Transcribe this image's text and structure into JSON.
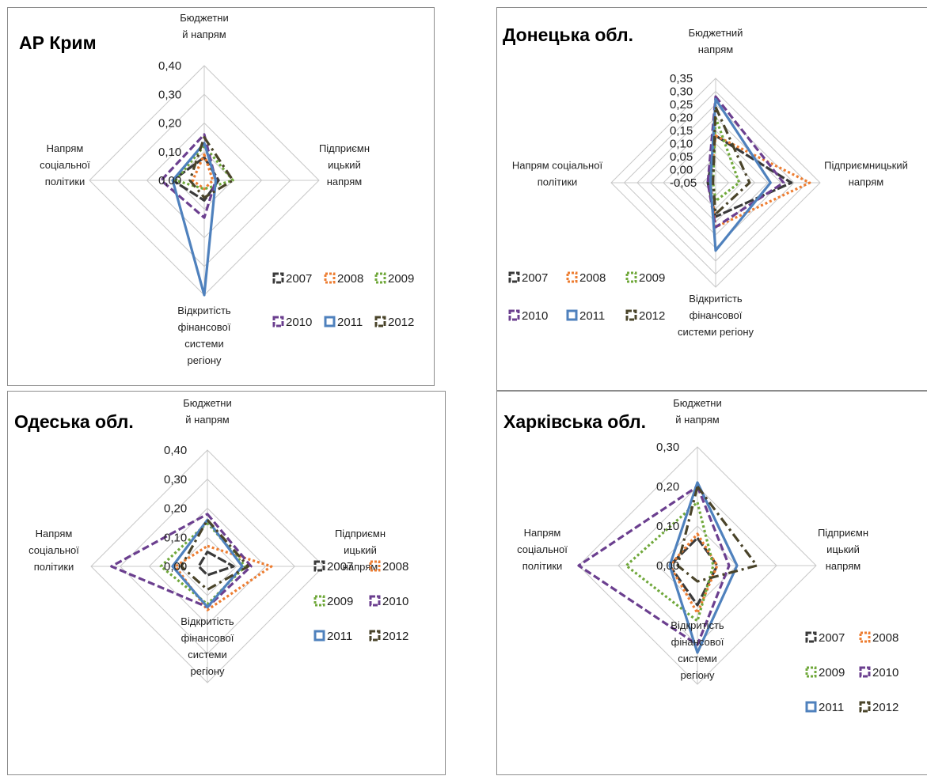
{
  "series_colors": [
    "#3a3a3a",
    "#ed7d31",
    "#70a83b",
    "#6b3f8f",
    "#4f81bd",
    "#4a442a"
  ],
  "charts": [
    {
      "title": "АР Крим",
      "axes": [
        [
          "Бюджетни",
          "й напрям"
        ],
        [
          "Підприємн",
          "ицький",
          "напрям"
        ],
        [
          "Відкритість",
          "фінансової",
          "системи",
          "регіону"
        ],
        [
          "Напрям",
          "соціальної",
          "політики"
        ]
      ],
      "ticks": [
        "0,00",
        "0,10",
        "0,20",
        "0,30",
        "0,40"
      ],
      "legend_rows": [
        [
          "2007",
          "2008",
          "2009"
        ],
        [
          "2010",
          "2011",
          "2012"
        ]
      ]
    },
    {
      "title": "Донецька обл.",
      "axes": [
        [
          "Бюджетний",
          "напрям"
        ],
        [
          "Підприємницький",
          "напрям"
        ],
        [
          "Відкритість",
          "фінансової",
          "системи регіону"
        ],
        [
          "Напрям соціальної",
          "політики"
        ]
      ],
      "ticks": [
        "-0,05",
        "0,00",
        "0,05",
        "0,10",
        "0,15",
        "0,20",
        "0,25",
        "0,30",
        "0,35"
      ],
      "legend_rows": [
        [
          "2007",
          "2008",
          "2009"
        ],
        [
          "2010",
          "2011",
          "2012"
        ]
      ]
    },
    {
      "title": "Одеська обл.",
      "axes": [
        [
          "Бюджетни",
          "й напрям"
        ],
        [
          "Підприємн",
          "ицький",
          "напрям"
        ],
        [
          "Відкритість",
          "фінансової",
          "системи",
          "регіону"
        ],
        [
          "Напрям",
          "соціальної",
          "політики"
        ]
      ],
      "ticks": [
        "0,00",
        "0,10",
        "0,20",
        "0,30",
        "0,40"
      ],
      "legend_rows": [
        [
          "2007",
          "2008"
        ],
        [
          "2009",
          "2010"
        ],
        [
          "2011",
          "2012"
        ]
      ]
    },
    {
      "title": "Харківська обл.",
      "axes": [
        [
          "Бюджетни",
          "й напрям"
        ],
        [
          "Підприємн",
          "ицький",
          "напрям"
        ],
        [
          "Відкритість",
          "фінансової",
          "системи",
          "регіону"
        ],
        [
          "Напрям",
          "соціальної",
          "політики"
        ]
      ],
      "ticks": [
        "0,00",
        "0,10",
        "0,20",
        "0,30"
      ],
      "legend_rows": [
        [
          "2007",
          "2008"
        ],
        [
          "2009",
          "2010"
        ],
        [
          "2011",
          "2012"
        ]
      ]
    }
  ],
  "chart_data": [
    {
      "type": "radar",
      "title": "АР Крим",
      "categories": [
        "Бюджетний напрям",
        "Підприємницький напрям",
        "Відкритість фінансової системи регіону",
        "Напрям соціальної політики"
      ],
      "rlim": [
        0,
        0.4
      ],
      "series": [
        {
          "name": "2007",
          "values": [
            0.08,
            0.05,
            0.07,
            0.11
          ]
        },
        {
          "name": "2008",
          "values": [
            0.09,
            0.03,
            0.03,
            0.04
          ]
        },
        {
          "name": "2009",
          "values": [
            0.12,
            0.1,
            0.03,
            0.1
          ]
        },
        {
          "name": "2010",
          "values": [
            0.16,
            0.04,
            0.13,
            0.15
          ]
        },
        {
          "name": "2011",
          "values": [
            0.13,
            0.04,
            0.4,
            0.11
          ]
        },
        {
          "name": "2012",
          "values": [
            0.15,
            0.1,
            0.06,
            0.05
          ]
        }
      ]
    },
    {
      "type": "radar",
      "title": "Донецька обл.",
      "categories": [
        "Бюджетний напрям",
        "Підприємницький напрям",
        "Відкритість фінансової системи регіону",
        "Напрям соціальної політики"
      ],
      "rlim": [
        -0.05,
        0.35
      ],
      "series": [
        {
          "name": "2007",
          "values": [
            0.13,
            0.24,
            0.08,
            -0.02
          ]
        },
        {
          "name": "2008",
          "values": [
            0.13,
            0.31,
            0.12,
            -0.03
          ]
        },
        {
          "name": "2009",
          "values": [
            0.2,
            0.04,
            0.02,
            -0.04
          ]
        },
        {
          "name": "2010",
          "values": [
            0.28,
            0.21,
            0.12,
            -0.02
          ]
        },
        {
          "name": "2011",
          "values": [
            0.27,
            0.16,
            0.21,
            -0.03
          ]
        },
        {
          "name": "2012",
          "values": [
            0.24,
            0.08,
            0.07,
            -0.04
          ]
        }
      ]
    },
    {
      "type": "radar",
      "title": "Одеська обл.",
      "categories": [
        "Бюджетний напрям",
        "Підприємницький напрям",
        "Відкритість фінансової системи регіону",
        "Напрям соціальної політики"
      ],
      "rlim": [
        0,
        0.4
      ],
      "series": [
        {
          "name": "2007",
          "values": [
            0.05,
            0.09,
            0.03,
            0.03
          ]
        },
        {
          "name": "2008",
          "values": [
            0.07,
            0.22,
            0.15,
            0.11
          ]
        },
        {
          "name": "2009",
          "values": [
            0.15,
            0.13,
            0.13,
            0.16
          ]
        },
        {
          "name": "2010",
          "values": [
            0.18,
            0.15,
            0.14,
            0.33
          ]
        },
        {
          "name": "2011",
          "values": [
            0.16,
            0.12,
            0.14,
            0.12
          ]
        },
        {
          "name": "2012",
          "values": [
            0.16,
            0.14,
            0.08,
            0.09
          ]
        }
      ]
    },
    {
      "type": "radar",
      "title": "Харківська обл.",
      "categories": [
        "Бюджетний напрям",
        "Підприємницький напрям",
        "Відкритість фінансової системи регіону",
        "Напрям соціальної політики"
      ],
      "rlim": [
        0,
        0.3
      ],
      "series": [
        {
          "name": "2007",
          "values": [
            0.07,
            0.05,
            0.1,
            0.07
          ]
        },
        {
          "name": "2008",
          "values": [
            0.08,
            0.05,
            0.12,
            0.07
          ]
        },
        {
          "name": "2009",
          "values": [
            0.16,
            0.04,
            0.14,
            0.18
          ]
        },
        {
          "name": "2010",
          "values": [
            0.2,
            0.08,
            0.2,
            0.3
          ]
        },
        {
          "name": "2011",
          "values": [
            0.21,
            0.1,
            0.22,
            0.07
          ]
        },
        {
          "name": "2012",
          "values": [
            0.2,
            0.15,
            0.04,
            0.05
          ]
        }
      ]
    }
  ]
}
